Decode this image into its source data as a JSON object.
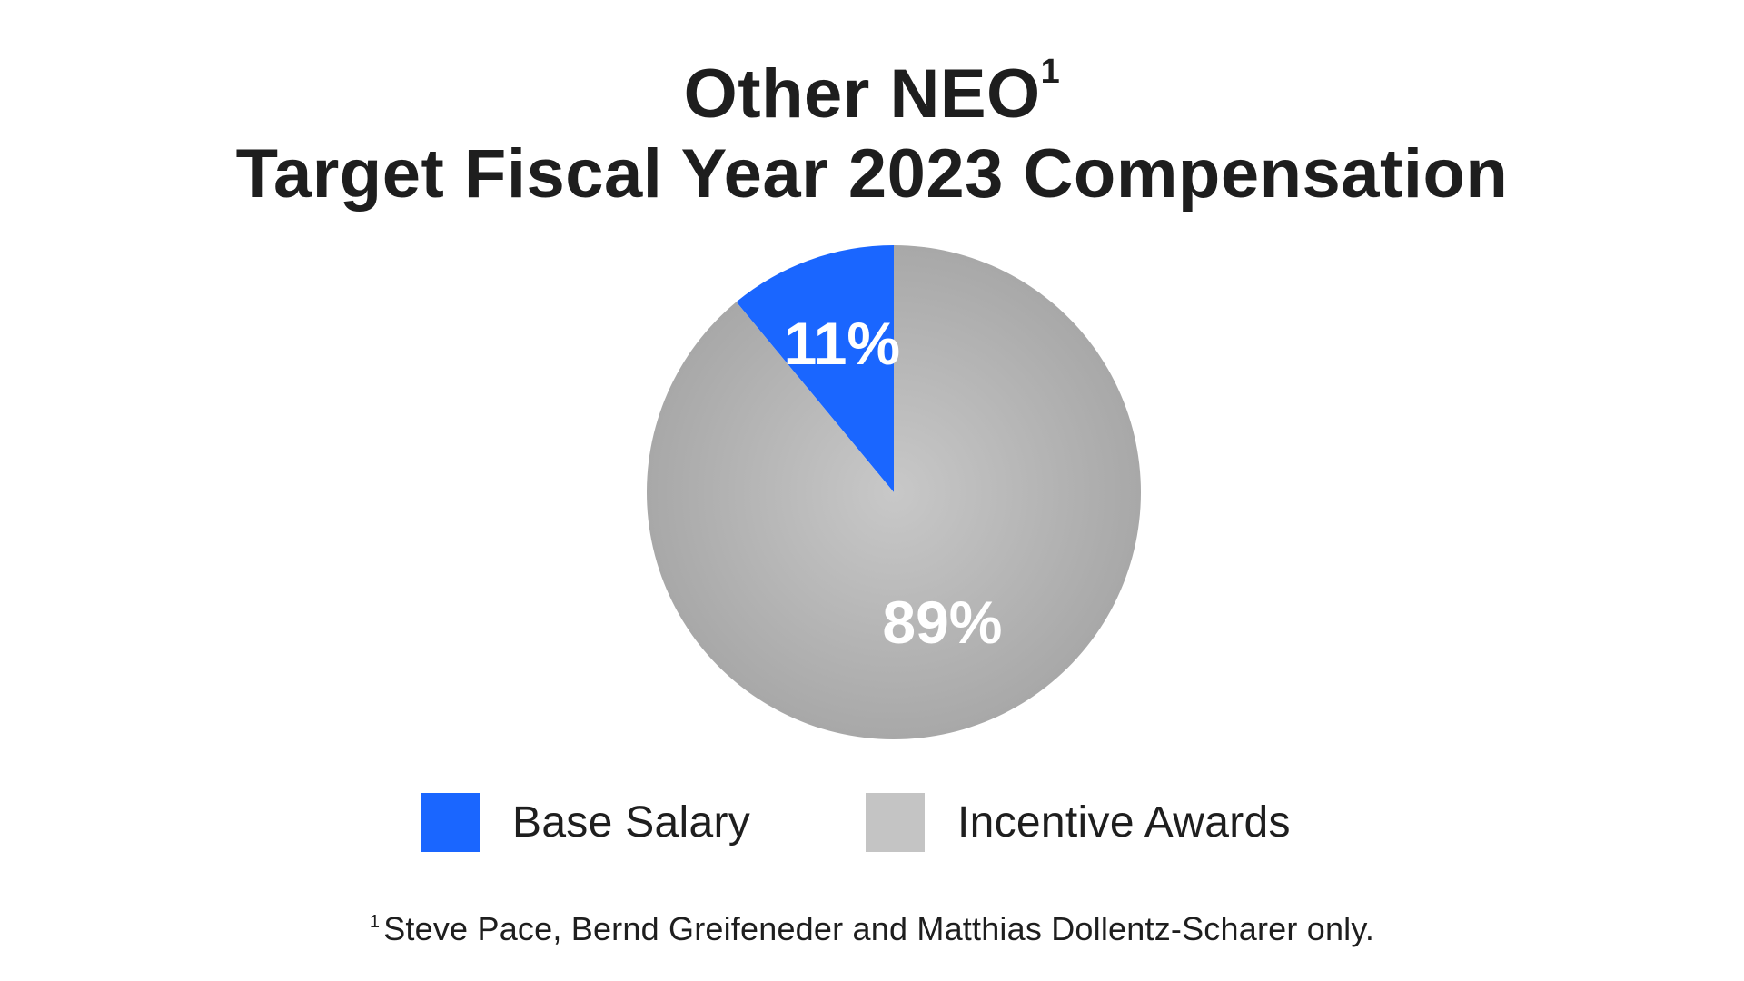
{
  "chart_data": {
    "type": "pie",
    "title_line1": "Other NEO",
    "title_line1_sup": "1",
    "title_line2": "Target Fiscal Year 2023 Compensation",
    "slices": [
      {
        "label": "Base Salary",
        "value": 11,
        "value_label": "11%",
        "color": "#1a66ff"
      },
      {
        "label": "Incentive Awards",
        "value": 89,
        "value_label": "89%",
        "color": "#b3b3b3"
      }
    ],
    "legend_placement": "bottom",
    "start_angle": "12 o'clock",
    "direction": "counter-clockwise"
  },
  "legend": {
    "items": [
      {
        "label": "Base Salary",
        "color": "#1a66ff"
      },
      {
        "label": "Incentive Awards",
        "color": "#c4c4c4"
      }
    ]
  },
  "footnote": {
    "marker": "1",
    "text": "Steve Pace, Bernd Greifeneder and Matthias Dollentz-Scharer only."
  }
}
